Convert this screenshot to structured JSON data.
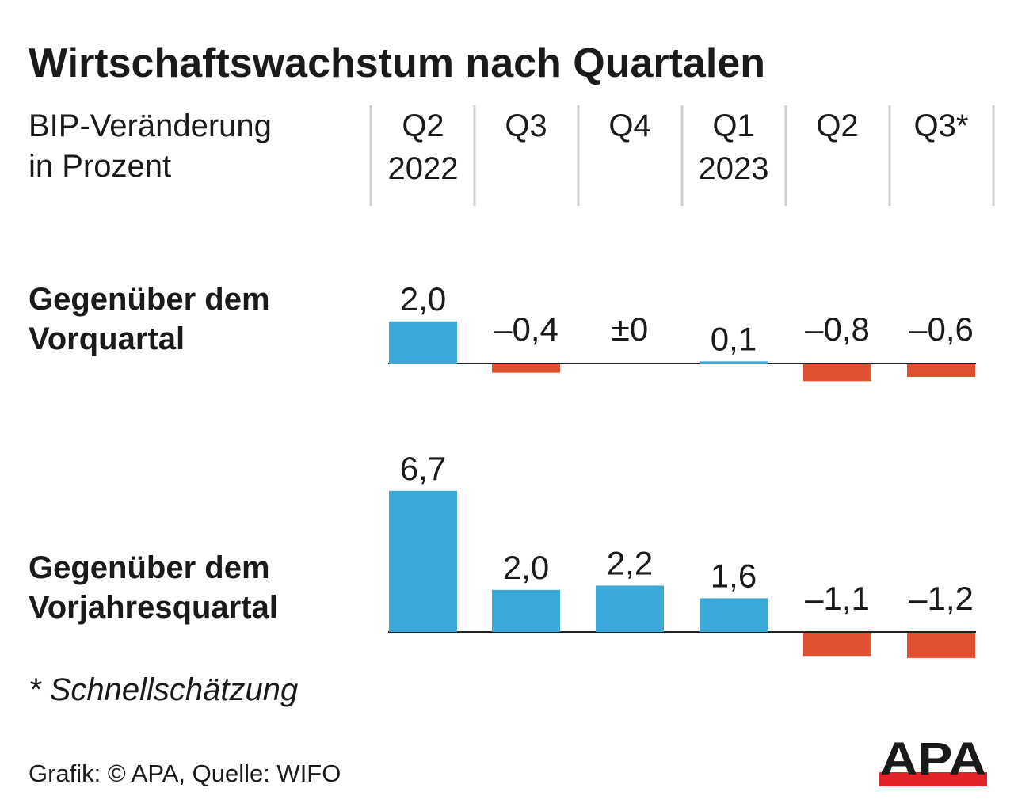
{
  "title": "Wirtschaftswachstum nach Quartalen",
  "subtitle_line1": "BIP-Veränderung",
  "subtitle_line2": "in Prozent",
  "columns": [
    {
      "line1": "Q2",
      "line2": "2022"
    },
    {
      "line1": "Q3",
      "line2": ""
    },
    {
      "line1": "Q4",
      "line2": ""
    },
    {
      "line1": "Q1",
      "line2": "2023"
    },
    {
      "line1": "Q2",
      "line2": ""
    },
    {
      "line1": "Q3*",
      "line2": ""
    }
  ],
  "footnote": "* Schnellschätzung",
  "source": "Grafik: © APA, Quelle: WIFO",
  "logo": "APA",
  "colors": {
    "positive": "#3aa9d8",
    "negative": "#e1502f",
    "logo_red": "#e3232a"
  },
  "chart_data": [
    {
      "type": "bar",
      "title_line1": "Gegenüber dem",
      "title_line2": "Vorquartal",
      "categories": [
        "Q2 2022",
        "Q3",
        "Q4",
        "Q1 2023",
        "Q2",
        "Q3*"
      ],
      "values": [
        2.0,
        -0.4,
        0,
        0.1,
        -0.8,
        -0.6
      ],
      "labels": [
        "2,0",
        "–0,4",
        "±0",
        "0,1",
        "–0,8",
        "–0,6"
      ]
    },
    {
      "type": "bar",
      "title_line1": "Gegenüber dem",
      "title_line2": "Vorjahresquartal",
      "categories": [
        "Q2 2022",
        "Q3",
        "Q4",
        "Q1 2023",
        "Q2",
        "Q3*"
      ],
      "values": [
        6.7,
        2.0,
        2.2,
        1.6,
        -1.1,
        -1.2
      ],
      "labels": [
        "6,7",
        "2,0",
        "2,2",
        "1,6",
        "–1,1",
        "–1,2"
      ]
    }
  ]
}
